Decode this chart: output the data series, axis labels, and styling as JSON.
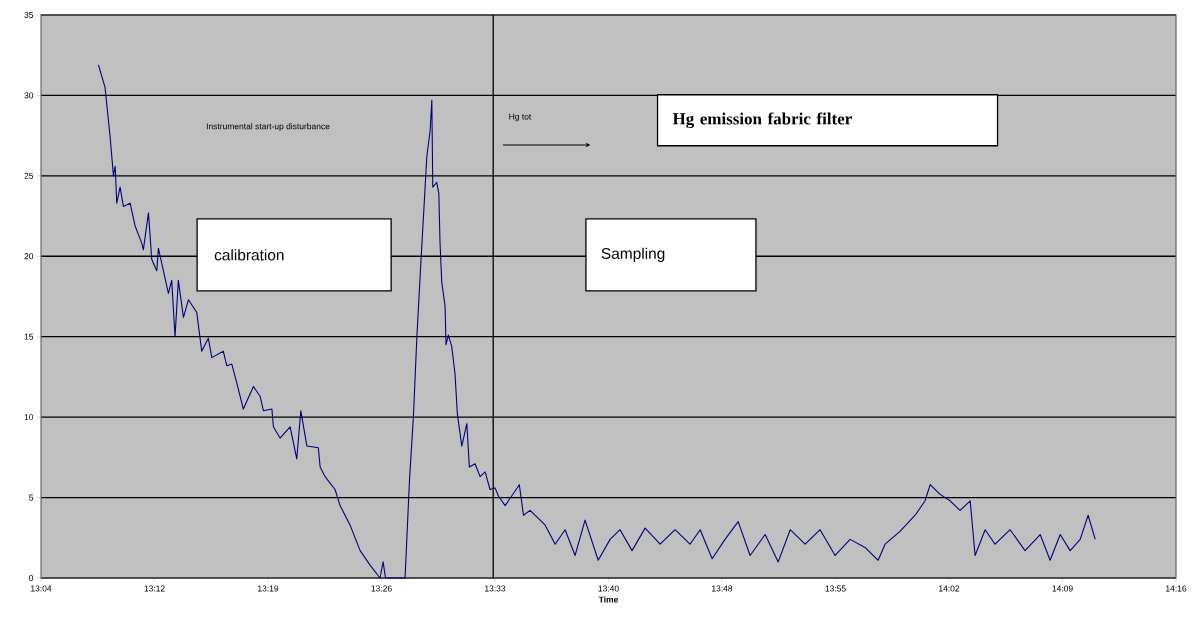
{
  "chart_data": {
    "type": "line",
    "xlabel": "Time",
    "annotations": [
      "Instrumental start-up disturbance",
      "Hg tot",
      "calibration",
      "Sampling",
      "Hg emission fabric filter"
    ],
    "xlim": [
      13.0733,
      14.2733
    ],
    "ylim": [
      0,
      35
    ],
    "xticks": [
      {
        "value": 13.0733,
        "label": "13:04"
      },
      {
        "value": 13.1933,
        "label": "13:12"
      },
      {
        "value": 13.3133,
        "label": "13:19"
      },
      {
        "value": 13.4333,
        "label": "13:26"
      },
      {
        "value": 13.5533,
        "label": "13:33"
      },
      {
        "value": 13.6733,
        "label": "13:40"
      },
      {
        "value": 13.7933,
        "label": "13:48"
      },
      {
        "value": 13.9133,
        "label": "13:55"
      },
      {
        "value": 14.0333,
        "label": "14:02"
      },
      {
        "value": 14.1533,
        "label": "14:09"
      },
      {
        "value": 14.2733,
        "label": "14:16"
      }
    ],
    "yticks": [
      0,
      5,
      10,
      15,
      20,
      25,
      30,
      35
    ],
    "grid": "y",
    "legend": false,
    "marker": "none",
    "line_style": "solid",
    "ref_lines": [
      {
        "axis": "x",
        "value": 13.5514,
        "color": "#000000"
      }
    ],
    "series": [
      {
        "color": "#000080",
        "x": [
          13.134,
          13.141,
          13.1464,
          13.1499,
          13.1517,
          13.1534,
          13.1569,
          13.1604,
          13.1675,
          13.1727,
          13.1799,
          13.1815,
          13.1869,
          13.1904,
          13.1957,
          13.1974,
          13.208,
          13.2115,
          13.215,
          13.2185,
          13.2239,
          13.2292,
          13.238,
          13.2432,
          13.2502,
          13.2539,
          13.266,
          13.2697,
          13.275,
          13.2804,
          13.2872,
          13.2979,
          13.3049,
          13.3084,
          13.3174,
          13.319,
          13.326,
          13.3367,
          13.3437,
          13.348,
          13.3544,
          13.3665,
          13.3684,
          13.3737,
          13.3789,
          13.3842,
          13.3895,
          13.4,
          13.4107,
          13.4212,
          13.4317,
          13.435,
          13.4375,
          13.4582,
          13.4629,
          13.467,
          13.4707,
          13.4749,
          13.4777,
          13.4812,
          13.4847,
          13.4865,
          13.4875,
          13.4917,
          13.4939,
          13.4952,
          13.497,
          13.5005,
          13.5015,
          13.504,
          13.5075,
          13.511,
          13.5135,
          13.5182,
          13.5235,
          13.5262,
          13.5322,
          13.5375,
          13.5429,
          13.548,
          13.5534,
          13.5569,
          13.564,
          13.579,
          13.5834,
          13.5904,
          13.6062,
          13.6169,
          13.6274,
          13.638,
          13.6485,
          13.6624,
          13.675,
          13.6855,
          13.6982,
          13.712,
          13.7279,
          13.7437,
          13.7595,
          13.7702,
          13.7829,
          13.7965,
          13.8104,
          13.823,
          13.8389,
          13.8527,
          13.8654,
          13.8812,
          13.897,
          13.9129,
          13.9287,
          13.9445,
          13.9584,
          13.9657,
          13.9815,
          13.9975,
          14.008,
          14.0134,
          14.0239,
          14.0345,
          14.045,
          14.0557,
          14.0609,
          14.0715,
          14.082,
          14.0979,
          14.1137,
          14.1297,
          14.1402,
          14.1509,
          14.1614,
          14.172,
          14.1804,
          14.1879
        ],
        "values": [
          31.9,
          30.5,
          27.4,
          25.0,
          25.6,
          23.3,
          24.3,
          23.1,
          23.3,
          21.9,
          20.8,
          20.4,
          22.7,
          19.8,
          19.1,
          20.5,
          17.7,
          18.5,
          15.0,
          18.5,
          16.2,
          17.3,
          16.5,
          14.1,
          14.9,
          13.7,
          14.1,
          13.2,
          13.3,
          12.1,
          10.5,
          11.9,
          11.3,
          10.4,
          10.5,
          9.4,
          8.7,
          9.4,
          7.4,
          10.4,
          8.2,
          8.1,
          6.9,
          6.3,
          5.9,
          5.5,
          4.5,
          3.3,
          1.7,
          0.8,
          0,
          1.0,
          0,
          0,
          6.1,
          10.0,
          15.0,
          19.6,
          22.5,
          26.2,
          27.8,
          29.7,
          24.3,
          24.6,
          23.9,
          20.8,
          18.4,
          16.9,
          14.5,
          15.1,
          14.4,
          12.7,
          10.2,
          8.2,
          9.6,
          6.9,
          7.1,
          6.3,
          6.6,
          5.5,
          5.6,
          5.1,
          4.5,
          5.8,
          3.9,
          4.2,
          3.3,
          2.1,
          3.0,
          1.4,
          3.6,
          1.1,
          2.4,
          3.0,
          1.7,
          3.1,
          2.1,
          3.0,
          2.1,
          3.0,
          1.2,
          2.4,
          3.5,
          1.4,
          2.7,
          1.0,
          3.0,
          2.1,
          3.0,
          1.4,
          2.4,
          1.9,
          1.1,
          2.1,
          2.9,
          3.9,
          4.8,
          5.8,
          5.2,
          4.8,
          4.2,
          4.8,
          1.4,
          3.0,
          2.1,
          3.0,
          1.7,
          2.7,
          1.1,
          2.7,
          1.7,
          2.4,
          3.9,
          2.4
        ]
      }
    ]
  }
}
